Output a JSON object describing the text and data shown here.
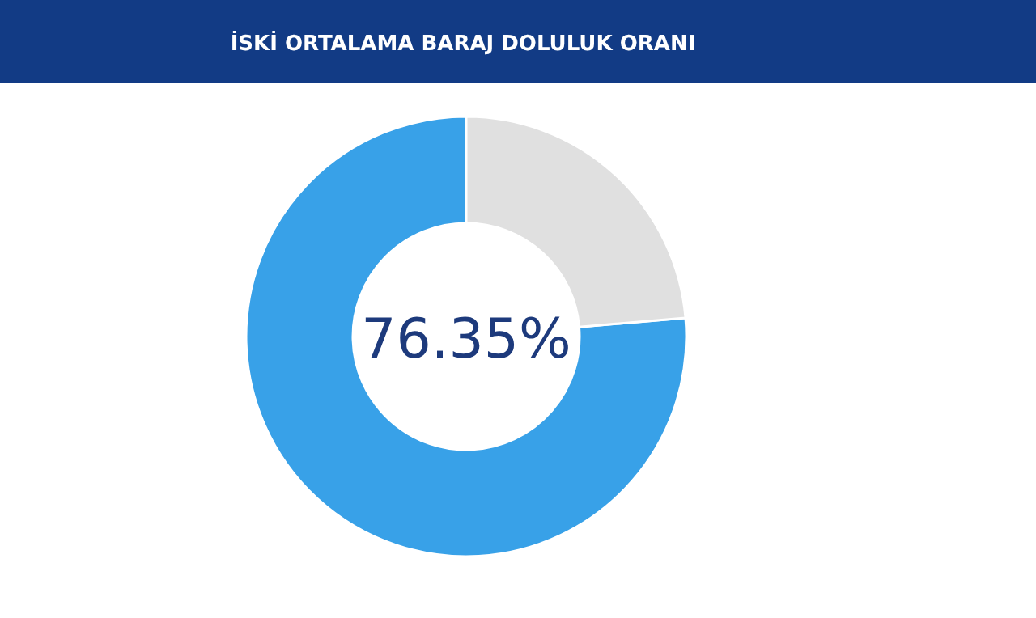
{
  "chart_data": {
    "type": "donut",
    "title": "İSKİ ORTALAMA BARAJ DOLULUK ORANI",
    "categories": [
      null,
      null
    ],
    "values": [
      76.35,
      23.65
    ],
    "colors": [
      "#38a1e8",
      "#e0e0e0"
    ],
    "value_labels": [
      "76.35%",
      null
    ]
  }
}
